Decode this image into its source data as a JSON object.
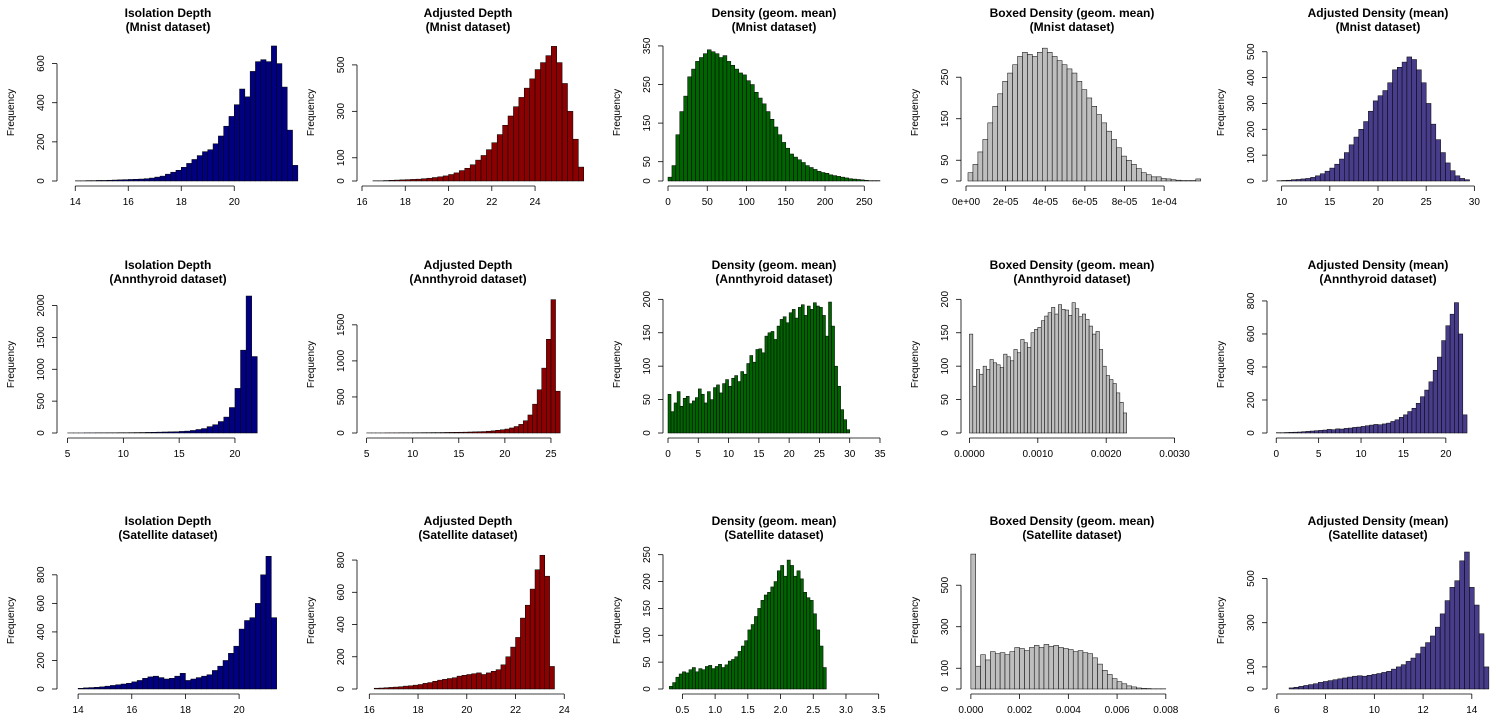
{
  "chart_data": [
    {
      "type": "bar",
      "title": "Isolation Depth",
      "subtitle": "(Mnist dataset)",
      "xlabel": "",
      "ylabel": "Frequency",
      "bar_color": "#000080",
      "xlim": [
        13.5,
        21.5
      ],
      "ylim": [
        0,
        700
      ],
      "xticks": [
        "14",
        "16",
        "18",
        "20"
      ],
      "yticks": [
        "0",
        "200",
        "400",
        "600"
      ],
      "bin_start": 14,
      "bin_width": 0.2,
      "values": [
        1,
        1,
        2,
        2,
        3,
        3,
        4,
        5,
        6,
        7,
        8,
        9,
        10,
        12,
        15,
        20,
        25,
        35,
        45,
        55,
        70,
        90,
        110,
        130,
        150,
        160,
        190,
        230,
        280,
        330,
        390,
        470,
        430,
        560,
        610,
        620,
        610,
        690,
        600,
        480,
        260,
        80
      ]
    },
    {
      "type": "bar",
      "title": "Adjusted Depth",
      "subtitle": "(Mnist dataset)",
      "xlabel": "",
      "ylabel": "Frequency",
      "bar_color": "#8B0000",
      "xlim": [
        16,
        25.8
      ],
      "ylim": [
        0,
        590
      ],
      "xticks": [
        "16",
        "18",
        "20",
        "22",
        "24"
      ],
      "yticks": [
        "0",
        "100",
        "300",
        "500"
      ],
      "bin_start": 16.5,
      "bin_width": 0.25,
      "values": [
        1,
        1,
        2,
        3,
        4,
        5,
        6,
        7,
        8,
        10,
        12,
        15,
        18,
        22,
        28,
        35,
        45,
        55,
        70,
        90,
        110,
        135,
        165,
        200,
        240,
        280,
        320,
        360,
        400,
        440,
        480,
        510,
        540,
        580,
        510,
        420,
        300,
        180,
        60
      ]
    },
    {
      "type": "bar",
      "title": "Density (geom. mean)",
      "subtitle": "(Mnist dataset)",
      "xlabel": "",
      "ylabel": "Frequency",
      "bar_color": "#006400",
      "xlim": [
        0,
        270
      ],
      "ylim": [
        0,
        355
      ],
      "xticks": [
        "0",
        "50",
        "100",
        "150",
        "200",
        "250"
      ],
      "yticks": [
        "0",
        "50",
        "150",
        "250",
        "350"
      ],
      "bin_start": 0,
      "bin_width": 5,
      "values": [
        10,
        40,
        120,
        180,
        220,
        270,
        290,
        310,
        320,
        330,
        340,
        335,
        330,
        320,
        325,
        310,
        300,
        290,
        280,
        275,
        260,
        250,
        230,
        215,
        200,
        180,
        160,
        140,
        120,
        100,
        85,
        70,
        62,
        55,
        48,
        40,
        35,
        30,
        25,
        22,
        20,
        16,
        14,
        12,
        10,
        8,
        6,
        5,
        4,
        3,
        2,
        1,
        1,
        1
      ]
    },
    {
      "type": "bar",
      "title": "Boxed Density (geom. mean)",
      "subtitle": "(Mnist dataset)",
      "xlabel": "",
      "ylabel": "Frequency",
      "bar_color": "#BEBEBE",
      "xlim": [
        0,
        0.000107
      ],
      "ylim": [
        0,
        330
      ],
      "xticks": [
        "0e+00",
        "2e-05",
        "4e-05",
        "6e-05",
        "8e-05",
        "1e-04"
      ],
      "yticks": [
        "0",
        "50",
        "150",
        "250"
      ],
      "bin_start": 1e-06,
      "bin_width": 2.5e-06,
      "values": [
        20,
        40,
        70,
        100,
        140,
        180,
        210,
        240,
        260,
        280,
        300,
        310,
        305,
        300,
        310,
        320,
        310,
        300,
        290,
        280,
        270,
        260,
        240,
        220,
        200,
        180,
        160,
        140,
        120,
        100,
        80,
        60,
        50,
        40,
        30,
        20,
        15,
        10,
        10,
        6,
        5,
        3,
        2,
        1,
        1,
        1,
        5
      ]
    },
    {
      "type": "bar",
      "title": "Adjusted Density (mean)",
      "subtitle": "(Mnist dataset)",
      "xlabel": "",
      "ylabel": "Frequency",
      "bar_color": "#483D8B",
      "xlim": [
        9,
        31
      ],
      "ylim": [
        0,
        530
      ],
      "xticks": [
        "10",
        "15",
        "20",
        "25",
        "30"
      ],
      "yticks": [
        "0",
        "100",
        "200",
        "300",
        "400",
        "500"
      ],
      "bin_start": 9.5,
      "bin_width": 0.5,
      "values": [
        1,
        2,
        3,
        5,
        6,
        8,
        10,
        14,
        20,
        28,
        38,
        50,
        65,
        85,
        110,
        140,
        170,
        200,
        230,
        270,
        310,
        330,
        350,
        380,
        430,
        440,
        460,
        480,
        470,
        430,
        380,
        300,
        220,
        160,
        110,
        70,
        40,
        20,
        10,
        5
      ]
    },
    {
      "type": "bar",
      "title": "Isolation Depth",
      "subtitle": "(Annthyroid dataset)",
      "xlabel": "",
      "ylabel": "Frequency",
      "bar_color": "#000080",
      "xlim": [
        4.5,
        23.5
      ],
      "ylim": [
        0,
        2150
      ],
      "xticks": [
        "5",
        "10",
        "15",
        "20"
      ],
      "yticks": [
        "0",
        "500",
        "1000",
        "1500",
        "2000"
      ],
      "bin_start": 5,
      "bin_width": 0.5,
      "values": [
        1,
        1,
        1,
        2,
        2,
        3,
        3,
        4,
        4,
        5,
        5,
        6,
        7,
        8,
        10,
        12,
        14,
        16,
        18,
        20,
        25,
        30,
        40,
        55,
        70,
        100,
        130,
        180,
        250,
        400,
        700,
        1300,
        2150,
        1200
      ]
    },
    {
      "type": "bar",
      "title": "Adjusted Depth",
      "subtitle": "(Annthyroid dataset)",
      "xlabel": "",
      "ylabel": "Frequency",
      "bar_color": "#8B0000",
      "xlim": [
        4.5,
        27.5
      ],
      "ylim": [
        0,
        1900
      ],
      "xticks": [
        "5",
        "10",
        "15",
        "20",
        "25"
      ],
      "yticks": [
        "0",
        "500",
        "1000",
        "1500"
      ],
      "bin_start": 5,
      "bin_width": 0.5,
      "values": [
        1,
        1,
        1,
        1,
        2,
        2,
        2,
        3,
        3,
        3,
        4,
        4,
        5,
        5,
        6,
        6,
        7,
        8,
        9,
        10,
        11,
        12,
        14,
        16,
        18,
        20,
        25,
        30,
        38,
        45,
        55,
        70,
        90,
        120,
        170,
        250,
        400,
        600,
        900,
        1300,
        1850,
        580
      ]
    },
    {
      "type": "bar",
      "title": "Density (geom. mean)",
      "subtitle": "(Annthyroid dataset)",
      "xlabel": "",
      "ylabel": "Frequency",
      "bar_color": "#006400",
      "xlim": [
        0,
        35
      ],
      "ylim": [
        0,
        205
      ],
      "xticks": [
        "0",
        "5",
        "10",
        "15",
        "20",
        "25",
        "30",
        "35"
      ],
      "yticks": [
        "0",
        "50",
        "100",
        "150",
        "200"
      ],
      "bin_start": 0,
      "bin_width": 0.5,
      "values": [
        58,
        32,
        45,
        62,
        40,
        52,
        55,
        44,
        48,
        53,
        66,
        58,
        45,
        62,
        50,
        68,
        72,
        60,
        74,
        80,
        70,
        82,
        86,
        77,
        92,
        88,
        104,
        116,
        106,
        125,
        126,
        120,
        145,
        150,
        152,
        140,
        160,
        170,
        174,
        165,
        180,
        185,
        172,
        188,
        192,
        176,
        190,
        185,
        195,
        190,
        188,
        176,
        145,
        196,
        160,
        100,
        70,
        35,
        20,
        5
      ]
    },
    {
      "type": "bar",
      "title": "Boxed Density (geom. mean)",
      "subtitle": "(Annthyroid dataset)",
      "xlabel": "",
      "ylabel": "Frequency",
      "bar_color": "#BEBEBE",
      "xlim": [
        -5e-05,
        0.00305
      ],
      "ylim": [
        0,
        205
      ],
      "xticks": [
        "0.0000",
        "0.0010",
        "0.0020",
        "0.0030"
      ],
      "yticks": [
        "0",
        "50",
        "100",
        "150",
        "200"
      ],
      "bin_start": 0,
      "bin_width": 5e-05,
      "values": [
        148,
        70,
        95,
        88,
        100,
        95,
        110,
        105,
        102,
        98,
        118,
        114,
        108,
        125,
        120,
        140,
        135,
        128,
        150,
        155,
        158,
        168,
        175,
        180,
        188,
        178,
        192,
        185,
        184,
        176,
        195,
        186,
        174,
        178,
        170,
        160,
        148,
        152,
        125,
        100,
        86,
        80,
        74,
        60,
        46,
        30
      ]
    },
    {
      "type": "bar",
      "title": "Adjusted Density (mean)",
      "subtitle": "(Annthyroid dataset)",
      "xlabel": "",
      "ylabel": "Frequency",
      "bar_color": "#483D8B",
      "xlim": [
        -0.5,
        24.5
      ],
      "ylim": [
        0,
        830
      ],
      "xticks": [
        "0",
        "5",
        "10",
        "15",
        "20"
      ],
      "yticks": [
        "0",
        "200",
        "400",
        "600",
        "800"
      ],
      "bin_start": 0,
      "bin_width": 0.5,
      "values": [
        2,
        2,
        3,
        4,
        5,
        6,
        8,
        10,
        12,
        14,
        16,
        18,
        22,
        20,
        25,
        24,
        28,
        30,
        34,
        36,
        40,
        44,
        48,
        52,
        50,
        55,
        60,
        70,
        80,
        95,
        110,
        130,
        150,
        180,
        220,
        260,
        310,
        380,
        460,
        560,
        650,
        720,
        790,
        600,
        110
      ]
    },
    {
      "type": "bar",
      "title": "Isolation Depth",
      "subtitle": "(Satellite dataset)",
      "xlabel": "",
      "ylabel": "Frequency",
      "bar_color": "#000080",
      "xlim": [
        13.4,
        21.3
      ],
      "ylim": [
        0,
        960
      ],
      "xticks": [
        "14",
        "16",
        "18",
        "20"
      ],
      "yticks": [
        "0",
        "200",
        "400",
        "600",
        "800"
      ],
      "bin_start": 14,
      "bin_width": 0.2,
      "values": [
        5,
        8,
        10,
        12,
        15,
        20,
        25,
        30,
        35,
        40,
        50,
        60,
        75,
        85,
        90,
        80,
        70,
        75,
        90,
        110,
        60,
        70,
        80,
        90,
        100,
        130,
        160,
        200,
        250,
        300,
        420,
        480,
        500,
        600,
        800,
        930,
        500
      ]
    },
    {
      "type": "bar",
      "title": "Adjusted Depth",
      "subtitle": "(Satellite dataset)",
      "xlabel": "",
      "ylabel": "Frequency",
      "bar_color": "#8B0000",
      "xlim": [
        15.7,
        24.4
      ],
      "ylim": [
        0,
        850
      ],
      "xticks": [
        "16",
        "18",
        "20",
        "22",
        "24"
      ],
      "yticks": [
        "0",
        "200",
        "400",
        "600",
        "800"
      ],
      "bin_start": 16.2,
      "bin_width": 0.2,
      "values": [
        5,
        6,
        8,
        10,
        12,
        14,
        18,
        20,
        24,
        28,
        35,
        40,
        48,
        55,
        60,
        65,
        70,
        80,
        85,
        90,
        95,
        100,
        90,
        100,
        110,
        120,
        150,
        200,
        260,
        320,
        440,
        520,
        620,
        740,
        830,
        700,
        140
      ]
    },
    {
      "type": "bar",
      "title": "Density (geom. mean)",
      "subtitle": "(Satellite dataset)",
      "xlabel": "",
      "ylabel": "Frequency",
      "bar_color": "#006400",
      "xlim": [
        0.28,
        3.52
      ],
      "ylim": [
        0,
        255
      ],
      "xticks": [
        "0.5",
        "1.0",
        "1.5",
        "2.0",
        "2.5",
        "3.0",
        "3.5"
      ],
      "yticks": [
        "0",
        "50",
        "100",
        "150",
        "200",
        "250"
      ],
      "bin_start": 0.3,
      "bin_width": 0.05,
      "values": [
        5,
        12,
        22,
        28,
        32,
        30,
        36,
        40,
        32,
        38,
        36,
        42,
        44,
        38,
        42,
        46,
        40,
        45,
        52,
        55,
        60,
        70,
        80,
        90,
        110,
        120,
        135,
        150,
        165,
        175,
        180,
        190,
        200,
        220,
        230,
        210,
        240,
        230,
        210,
        220,
        205,
        180,
        170,
        165,
        140,
        110,
        80,
        40
      ]
    },
    {
      "type": "bar",
      "title": "Boxed Density (geom. mean)",
      "subtitle": "(Satellite dataset)",
      "xlabel": "",
      "ylabel": "Frequency",
      "bar_color": "#BEBEBE",
      "xlim": [
        -0.0002,
        0.0085
      ],
      "ylim": [
        0,
        660
      ],
      "xticks": [
        "0.000",
        "0.002",
        "0.004",
        "0.006",
        "0.008"
      ],
      "yticks": [
        "0",
        "100",
        "300",
        "500"
      ],
      "bin_start": 0,
      "bin_width": 0.0002,
      "values": [
        650,
        110,
        165,
        140,
        180,
        170,
        175,
        165,
        180,
        200,
        195,
        185,
        200,
        210,
        200,
        215,
        205,
        210,
        200,
        195,
        190,
        180,
        185,
        175,
        170,
        150,
        120,
        90,
        70,
        50,
        35,
        25,
        15,
        10,
        5,
        3,
        2,
        1,
        1,
        1
      ]
    },
    {
      "type": "bar",
      "title": "Adjusted Density (mean)",
      "subtitle": "(Satellite dataset)",
      "xlabel": "",
      "ylabel": "Frequency",
      "bar_color": "#483D8B",
      "xlim": [
        5.8,
        14.5
      ],
      "ylim": [
        0,
        620
      ],
      "xticks": [
        "6",
        "8",
        "10",
        "12",
        "14"
      ],
      "yticks": [
        "0",
        "100",
        "300",
        "500"
      ],
      "bin_start": 6.5,
      "bin_width": 0.2,
      "values": [
        5,
        8,
        12,
        16,
        20,
        24,
        30,
        34,
        38,
        42,
        46,
        50,
        54,
        58,
        60,
        58,
        62,
        66,
        70,
        75,
        80,
        90,
        100,
        110,
        125,
        140,
        160,
        190,
        210,
        240,
        280,
        340,
        400,
        460,
        490,
        580,
        620,
        460,
        380,
        250,
        100
      ]
    }
  ]
}
